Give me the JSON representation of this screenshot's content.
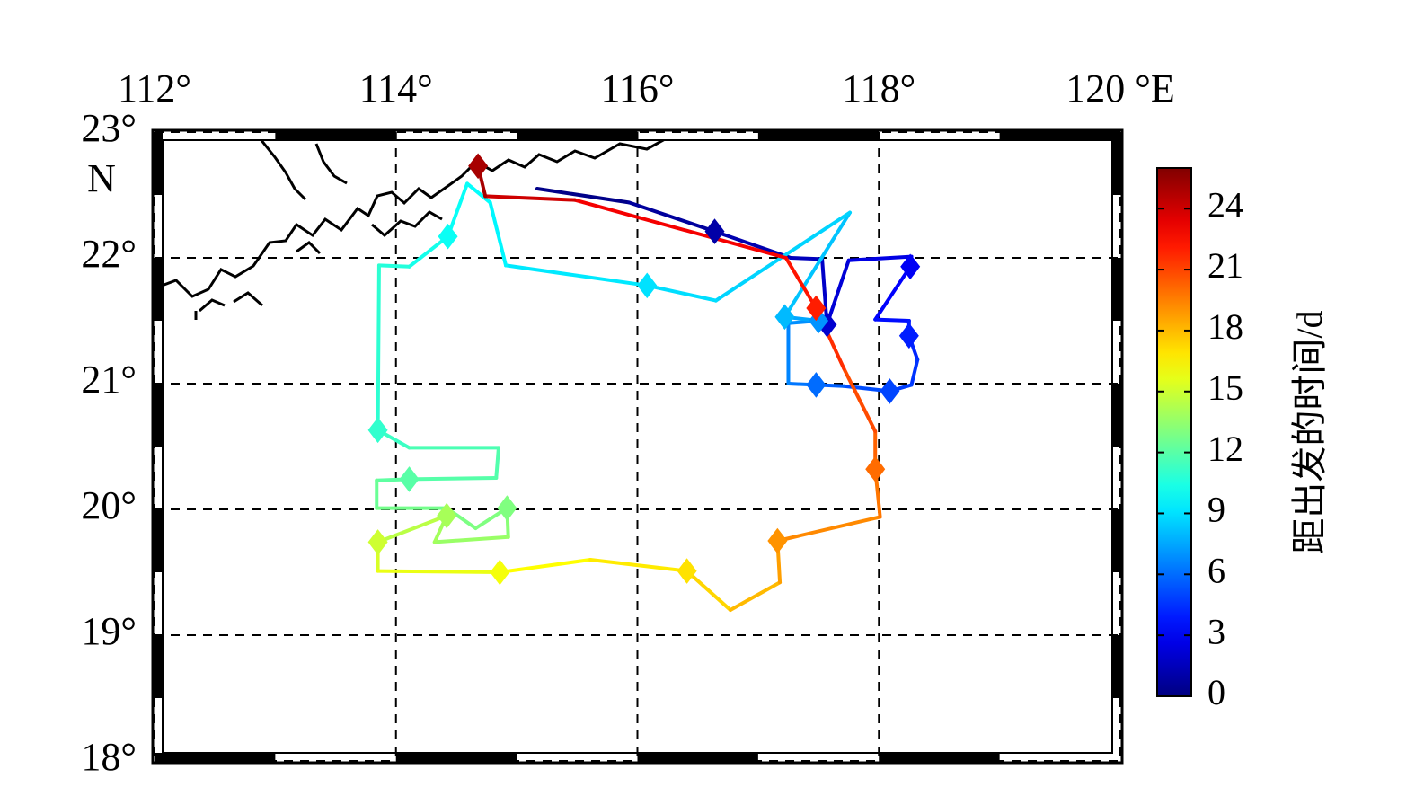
{
  "chart_data": {
    "type": "track",
    "xlim": [
      112,
      120
    ],
    "ylim": [
      18,
      23
    ],
    "xticks": [
      {
        "value": 112,
        "label": "112°"
      },
      {
        "value": 114,
        "label": "114°"
      },
      {
        "value": 116,
        "label": "116°"
      },
      {
        "value": 118,
        "label": "118°"
      },
      {
        "value": 120,
        "label": "120 °E"
      }
    ],
    "yticks": [
      {
        "value": 18,
        "label": "18°"
      },
      {
        "value": 19,
        "label": "19°"
      },
      {
        "value": 20,
        "label": "20°"
      },
      {
        "value": 21,
        "label": "21°"
      },
      {
        "value": 22,
        "label": "22°"
      },
      {
        "value": 23,
        "label": "23°"
      }
    ],
    "ylabel": "N",
    "grid": true,
    "colorbar": {
      "label": "距出发的时间/d",
      "clim": [
        0,
        26
      ],
      "ticks": [
        0,
        3,
        6,
        9,
        12,
        15,
        18,
        21,
        24
      ]
    },
    "track": {
      "lon": [
        115.17,
        115.93,
        116.64,
        117.27,
        117.53,
        117.57,
        117.75,
        118.27,
        118.26,
        117.97,
        118.25,
        118.25,
        118.32,
        118.27,
        118.09,
        117.71,
        117.48,
        117.25,
        117.25,
        117.5,
        117.22,
        117.76,
        116.65,
        116.08,
        114.91,
        114.78,
        114.59,
        114.43,
        114.11,
        113.86,
        113.85,
        114.11,
        114.85,
        114.83,
        114.11,
        113.84,
        113.84,
        114.42,
        114.66,
        114.92,
        114.93,
        114.32,
        114.42,
        113.85,
        113.85,
        114.86,
        115.61,
        116.41,
        116.77,
        117.18,
        117.16,
        118.01,
        117.97,
        117.97,
        117.71,
        117.48,
        117.23,
        115.48,
        114.74,
        114.68
      ],
      "lat": [
        22.55,
        22.44,
        22.21,
        22.0,
        21.99,
        21.47,
        21.98,
        22.01,
        21.93,
        21.51,
        21.5,
        21.38,
        21.19,
        20.99,
        20.94,
        20.98,
        20.99,
        21.0,
        21.48,
        21.5,
        21.53,
        22.36,
        21.66,
        21.78,
        21.94,
        22.44,
        22.59,
        22.17,
        21.93,
        21.94,
        20.63,
        20.49,
        20.49,
        20.25,
        20.24,
        20.23,
        20.01,
        20.01,
        19.85,
        20.01,
        19.78,
        19.74,
        19.95,
        19.74,
        19.51,
        19.5,
        19.6,
        19.51,
        19.2,
        19.42,
        19.75,
        19.94,
        20.32,
        20.62,
        21.12,
        21.6,
        22.0,
        22.46,
        22.49,
        22.73
      ],
      "t": [
        0,
        0.5,
        1,
        1.4,
        1.7,
        2,
        2.4,
        2.7,
        3,
        3.4,
        3.7,
        4,
        4.4,
        4.7,
        5,
        5.4,
        6,
        6.5,
        6.8,
        7,
        8,
        8.5,
        8.8,
        9,
        9.4,
        9.7,
        9.9,
        10,
        10.5,
        10.8,
        11,
        11.5,
        11.8,
        11.9,
        12,
        12.3,
        12.6,
        12.8,
        13,
        13,
        13.5,
        13.8,
        14,
        15,
        15.5,
        16,
        16.5,
        17,
        17.6,
        18.4,
        19,
        19.5,
        20,
        20.5,
        21.2,
        22,
        22.5,
        23.5,
        24.5,
        25.5
      ]
    },
    "markers": {
      "lon": [
        116.64,
        117.57,
        118.26,
        118.25,
        118.09,
        117.48,
        117.5,
        117.22,
        116.08,
        114.43,
        113.85,
        114.11,
        114.92,
        114.42,
        113.85,
        114.86,
        116.41,
        117.16,
        117.97,
        117.48,
        114.68
      ],
      "lat": [
        22.21,
        21.47,
        21.93,
        21.38,
        20.94,
        20.99,
        21.5,
        21.53,
        21.78,
        22.17,
        20.63,
        20.24,
        20.01,
        19.95,
        19.74,
        19.5,
        19.51,
        19.75,
        20.32,
        21.6,
        22.73
      ],
      "t": [
        1,
        2,
        3,
        4,
        5,
        6,
        7,
        8,
        9,
        10,
        11,
        12,
        13,
        14,
        15,
        16,
        17,
        19,
        20,
        22,
        25
      ]
    }
  }
}
